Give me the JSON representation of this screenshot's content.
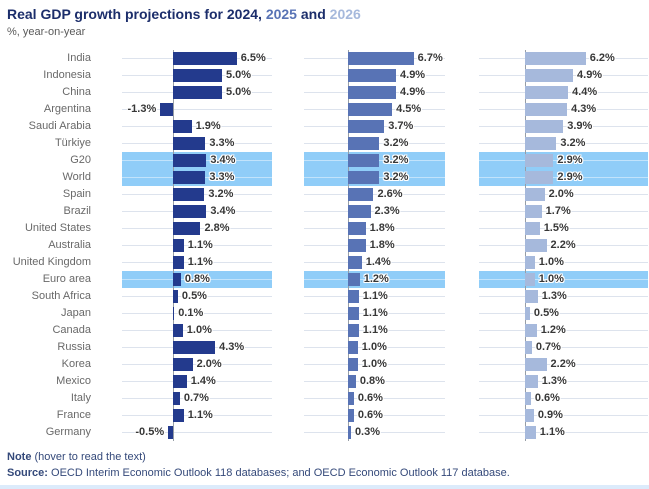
{
  "title": {
    "prefix": "Real GDP growth projections for ",
    "year1": "2024",
    "sep1": ", ",
    "year2": "2025",
    "sep2": " and ",
    "year3": "2026"
  },
  "subtitle": "%, year-on-year",
  "colors": {
    "title_dark": "#1c2e6b",
    "y2024": "#233a8d",
    "y2025": "#5873b5",
    "y2026": "#a6b9dc",
    "highlight_band": "#90cdf8",
    "gridline": "#dde3ed",
    "axis_line": "#979ea6",
    "country_label": "#696969",
    "value_label": "#373737",
    "footer_text": "#34497a"
  },
  "footer": {
    "note_label": "Note",
    "note_text": " (hover to read the text)",
    "source_label": "Source:",
    "source_text": " OECD Interim Economic Outlook 118 databases; and OECD Economic Outlook 117 database."
  },
  "chart_data": {
    "type": "bar",
    "orientation": "horizontal",
    "title": "Real GDP growth projections for 2024, 2025 and 2026",
    "subtitle": "%, year-on-year",
    "value_suffix": "%",
    "xlim": [
      -2,
      10
    ],
    "legend_position": "in-title",
    "highlighted": [
      "G20",
      "World",
      "Euro area"
    ],
    "categories": [
      "India",
      "Indonesia",
      "China",
      "Argentina",
      "Saudi Arabia",
      "Türkiye",
      "G20",
      "World",
      "Spain",
      "Brazil",
      "United States",
      "Australia",
      "United Kingdom",
      "Euro area",
      "South Africa",
      "Japan",
      "Canada",
      "Russia",
      "Korea",
      "Mexico",
      "Italy",
      "France",
      "Germany"
    ],
    "series": [
      {
        "name": "2024",
        "color": "#233a8d",
        "values": [
          6.5,
          5.0,
          5.0,
          -1.3,
          1.9,
          3.3,
          3.4,
          3.3,
          3.2,
          3.4,
          2.8,
          1.1,
          1.1,
          0.8,
          0.5,
          0.1,
          1.0,
          4.3,
          2.0,
          1.4,
          0.7,
          1.1,
          -0.5
        ]
      },
      {
        "name": "2025",
        "color": "#5873b5",
        "values": [
          6.7,
          4.9,
          4.9,
          4.5,
          3.7,
          3.2,
          3.2,
          3.2,
          2.6,
          2.3,
          1.8,
          1.8,
          1.4,
          1.2,
          1.1,
          1.1,
          1.1,
          1.0,
          1.0,
          0.8,
          0.6,
          0.6,
          0.3
        ]
      },
      {
        "name": "2026",
        "color": "#a6b9dc",
        "values": [
          6.2,
          4.9,
          4.4,
          4.3,
          3.9,
          3.2,
          2.9,
          2.9,
          2.0,
          1.7,
          1.5,
          2.2,
          1.0,
          1.0,
          1.3,
          0.5,
          1.2,
          0.7,
          2.2,
          1.3,
          0.6,
          0.9,
          1.1
        ]
      }
    ]
  }
}
